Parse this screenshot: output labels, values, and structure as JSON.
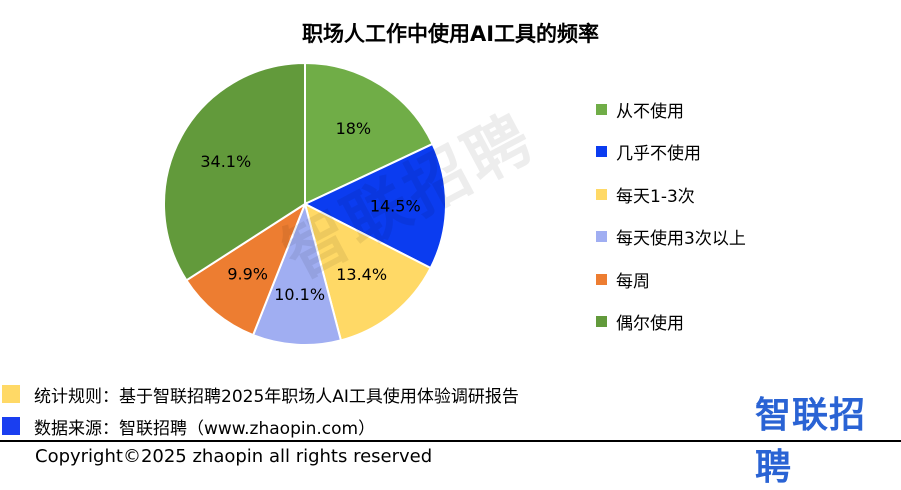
{
  "chart_data": {
    "type": "pie",
    "title": "职场人工作中使用AI工具的频率",
    "slices": [
      {
        "label": "从不使用",
        "value": 18,
        "value_label": "18%",
        "color": "#70ad47"
      },
      {
        "label": "几乎不使用",
        "value": 14.5,
        "value_label": "14.5%",
        "color": "#0b3cf0"
      },
      {
        "label": "每天1-3次",
        "value": 13.4,
        "value_label": "13.4%",
        "color": "#ffd966"
      },
      {
        "label": "每天使用3次以上",
        "value": 10.1,
        "value_label": "10.1%",
        "color": "#a0aef2"
      },
      {
        "label": "每周",
        "value": 9.9,
        "value_label": "9.9%",
        "color": "#ed7d31"
      },
      {
        "label": "偶尔使用",
        "value": 34.1,
        "value_label": "34.1%",
        "color": "#629a3b"
      }
    ],
    "legend_position": "right",
    "start_angle": "12 o'clock, clockwise"
  },
  "watermark": "智联招聘",
  "notes": [
    {
      "text": "统计规则：基于智联招聘2025年职场人AI工具使用体验调研报告",
      "color": "#ffd966"
    },
    {
      "text": "数据来源：智联招聘（www.zhaopin.com）",
      "color": "#1a3ef0"
    }
  ],
  "brand": "智联招聘",
  "copyright": "Copyright©2025 zhaopin all rights reserved"
}
